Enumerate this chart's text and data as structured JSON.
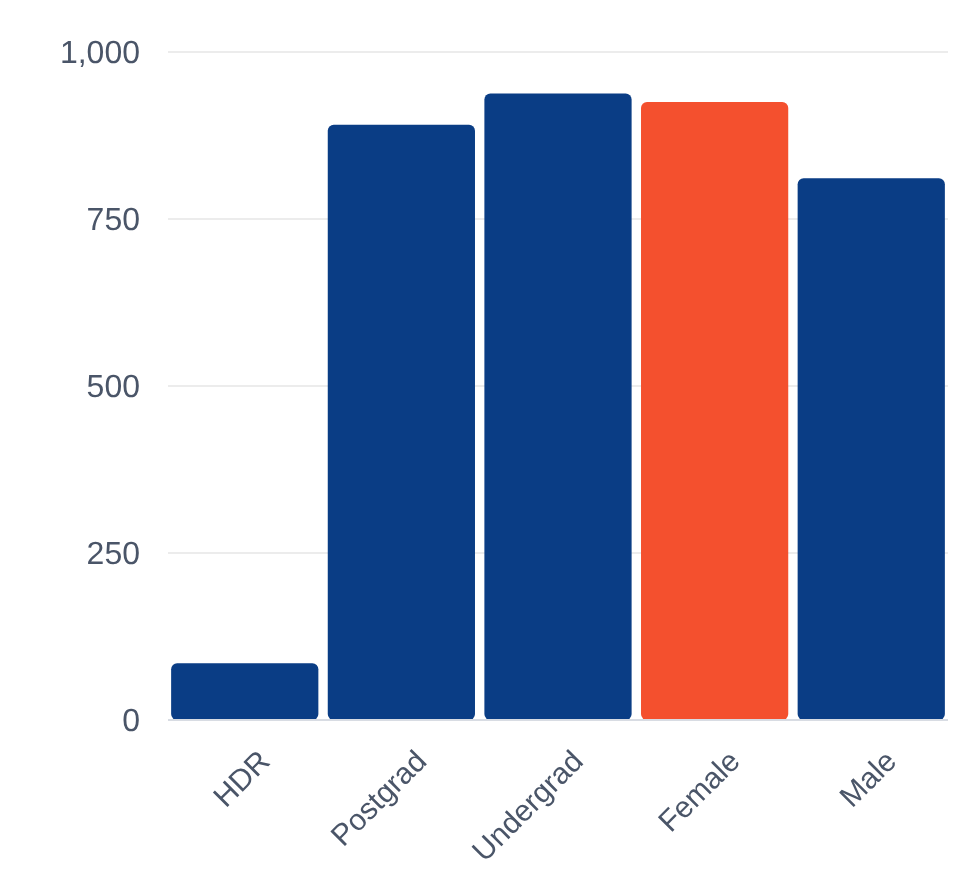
{
  "chart_data": {
    "type": "bar",
    "categories": [
      "HDR",
      "Postgrad",
      "Undergrad",
      "Female",
      "Male"
    ],
    "values": [
      85,
      891,
      938,
      925,
      811
    ],
    "colors": [
      "#0a3d85",
      "#0a3d85",
      "#0a3d85",
      "#f4502e",
      "#0a3d85"
    ],
    "ylim": [
      0,
      1000
    ],
    "yticks": [
      0,
      250,
      500,
      750,
      {
        "value": 1000,
        "label": "1,000"
      }
    ],
    "grid": "y"
  }
}
